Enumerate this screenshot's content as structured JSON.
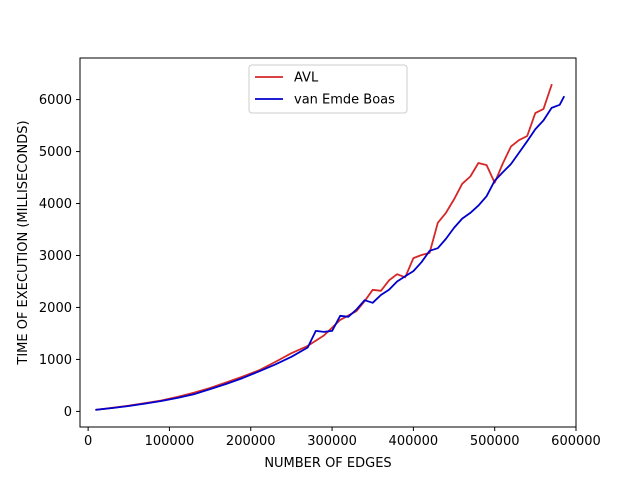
{
  "chart_data": {
    "type": "line",
    "title": "",
    "xlabel": "NUMBER OF EDGES",
    "ylabel": "TIME OF EXECUTION (MILLISECONDS)",
    "xlim": [
      -10000,
      600000
    ],
    "ylim": [
      -300,
      6800
    ],
    "xticks": [
      0,
      100000,
      200000,
      300000,
      400000,
      500000,
      600000
    ],
    "xtick_labels": [
      "0",
      "100000",
      "200000",
      "300000",
      "400000",
      "500000",
      "600000"
    ],
    "yticks": [
      0,
      1000,
      2000,
      3000,
      4000,
      5000,
      6000
    ],
    "ytick_labels": [
      "0",
      "1000",
      "2000",
      "3000",
      "4000",
      "5000",
      "6000"
    ],
    "grid": false,
    "legend_position": "top-center",
    "series": [
      {
        "name": "AVL",
        "color": "#d62728",
        "x": [
          10000,
          30000,
          50000,
          70000,
          90000,
          110000,
          130000,
          150000,
          170000,
          190000,
          210000,
          230000,
          250000,
          270000,
          290000,
          310000,
          330000,
          340000,
          350000,
          360000,
          370000,
          380000,
          390000,
          400000,
          410000,
          420000,
          430000,
          440000,
          450000,
          460000,
          470000,
          480000,
          490000,
          500000,
          510000,
          520000,
          530000,
          540000,
          550000,
          560000,
          570000
        ],
        "y": [
          30,
          70,
          110,
          160,
          210,
          280,
          360,
          450,
          560,
          670,
          790,
          950,
          1120,
          1260,
          1460,
          1760,
          1930,
          2120,
          2340,
          2320,
          2520,
          2640,
          2580,
          2950,
          3010,
          3050,
          3630,
          3820,
          4080,
          4380,
          4520,
          4780,
          4740,
          4400,
          4770,
          5100,
          5220,
          5300,
          5740,
          5820,
          6280
        ]
      },
      {
        "name": "van Emde Boas",
        "color": "#0000cc",
        "x": [
          10000,
          30000,
          50000,
          70000,
          90000,
          110000,
          130000,
          150000,
          170000,
          190000,
          210000,
          230000,
          250000,
          270000,
          280000,
          290000,
          300000,
          310000,
          320000,
          330000,
          340000,
          350000,
          360000,
          370000,
          380000,
          390000,
          400000,
          410000,
          420000,
          430000,
          440000,
          450000,
          460000,
          470000,
          480000,
          490000,
          500000,
          510000,
          520000,
          530000,
          540000,
          550000,
          560000,
          570000,
          580000,
          585000
        ],
        "y": [
          30,
          65,
          105,
          150,
          200,
          260,
          330,
          430,
          530,
          640,
          770,
          900,
          1050,
          1230,
          1550,
          1530,
          1550,
          1840,
          1820,
          1960,
          2140,
          2090,
          2240,
          2340,
          2500,
          2600,
          2700,
          2870,
          3090,
          3140,
          3320,
          3530,
          3710,
          3820,
          3960,
          4140,
          4440,
          4600,
          4760,
          4980,
          5200,
          5430,
          5600,
          5840,
          5900,
          6050
        ]
      }
    ]
  }
}
